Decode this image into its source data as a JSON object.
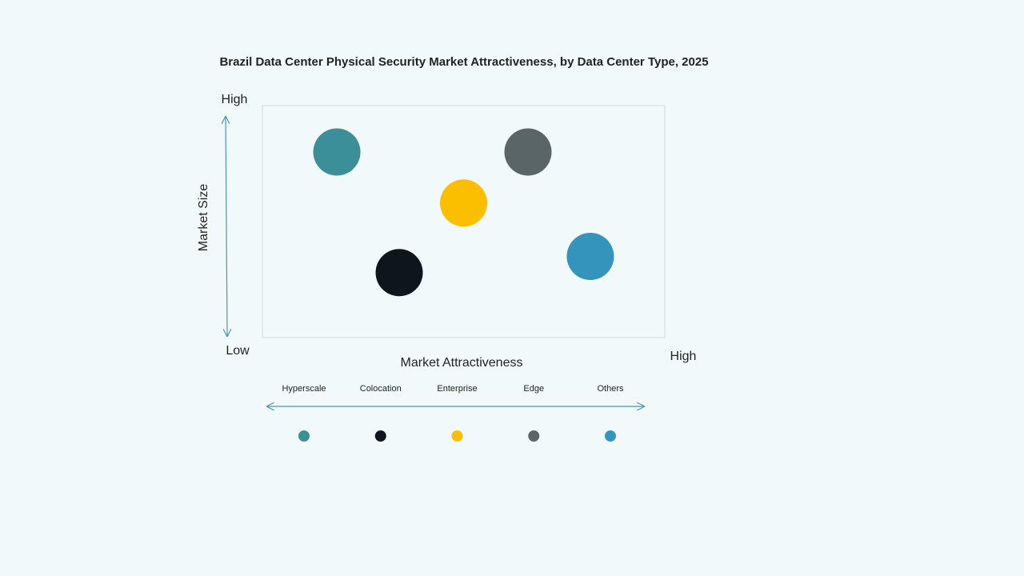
{
  "chart_data": {
    "type": "scatter",
    "title": "Brazil Data Center Physical Security Market Attractiveness,  by Data Center Type, 2025",
    "y_label": "Market Size",
    "x_label": "Market Attractiveness",
    "y_high_label": "High",
    "y_low_label": "Low",
    "x_high_label": "High",
    "xlim": [
      0,
      100
    ],
    "ylim": [
      0,
      100
    ],
    "series": [
      {
        "name": "Hyperscale",
        "color": "#3a8f98",
        "x": [
          18.5
        ],
        "values": [
          80
        ]
      },
      {
        "name": "Colocation",
        "color": "#0f151d",
        "x": [
          34
        ],
        "values": [
          28
        ]
      },
      {
        "name": "Enterprise",
        "color": "#fbbf00",
        "x": [
          50
        ],
        "values": [
          58
        ]
      },
      {
        "name": "Edge",
        "color": "#5a6567",
        "x": [
          66
        ],
        "values": [
          80
        ]
      },
      {
        "name": "Others",
        "color": "#3594bb",
        "x": [
          81.5
        ],
        "values": [
          35
        ]
      }
    ]
  }
}
